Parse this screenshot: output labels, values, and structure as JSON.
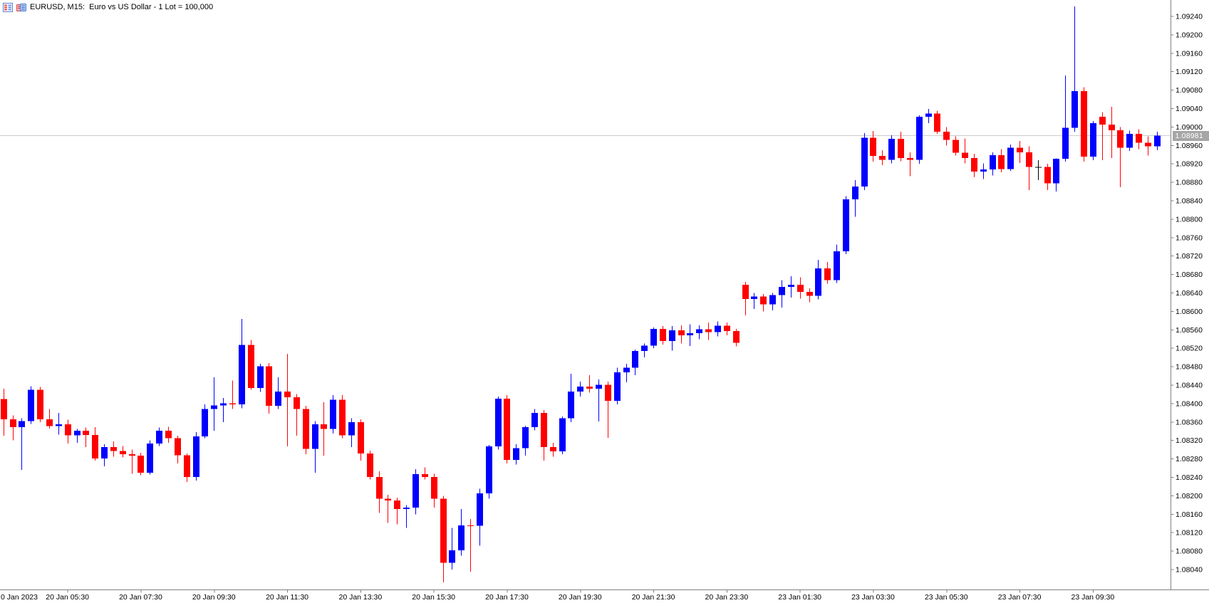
{
  "header": {
    "title": "EURUSD, M15:  Euro vs US Dollar - 1 Lot = 100,000",
    "icons": [
      "quotes-list-icon",
      "market-depth-icon"
    ]
  },
  "chart_data": {
    "type": "candlestick",
    "symbol": "EURUSD",
    "timeframe": "M15",
    "title": "EURUSD, M15:  Euro vs US Dollar - 1 Lot = 100,000",
    "price_scale": 100000,
    "current_price": 108981,
    "current_price_label": "1.08981",
    "colors": {
      "bull": "#0000ff",
      "bear": "#ff0000",
      "doji": "#000000",
      "price_line": "#cccccc",
      "badge_bg": "#a6a6a6",
      "badge_text": "#ffffff",
      "axis_line": "#808080",
      "axis_text": "#000000",
      "background": "#ffffff"
    },
    "y_axis": {
      "max": 109240,
      "min": 108040,
      "step": 40,
      "labels": [
        "1.09240",
        "1.09200",
        "1.09160",
        "1.09120",
        "1.09080",
        "1.09040",
        "1.09000",
        "1.08960",
        "1.08920",
        "1.08880",
        "1.08840",
        "1.08800",
        "1.08760",
        "1.08720",
        "1.08680",
        "1.08640",
        "1.08600",
        "1.08560",
        "1.08520",
        "1.08480",
        "1.08440",
        "1.08400",
        "1.08360",
        "1.08320",
        "1.08280",
        "1.08240",
        "1.08200",
        "1.08160",
        "1.08120",
        "1.08080",
        "1.08040"
      ]
    },
    "x_axis": {
      "labels": [
        {
          "index": -1,
          "text": "0 Jan 2023",
          "align": "left"
        },
        {
          "index": 7,
          "text": "20 Jan 05:30"
        },
        {
          "index": 15,
          "text": "20 Jan 07:30"
        },
        {
          "index": 23,
          "text": "20 Jan 09:30"
        },
        {
          "index": 31,
          "text": "20 Jan 11:30"
        },
        {
          "index": 39,
          "text": "20 Jan 13:30"
        },
        {
          "index": 47,
          "text": "20 Jan 15:30"
        },
        {
          "index": 55,
          "text": "20 Jan 17:30"
        },
        {
          "index": 63,
          "text": "20 Jan 19:30"
        },
        {
          "index": 71,
          "text": "20 Jan 21:30"
        },
        {
          "index": 79,
          "text": "20 Jan 23:30"
        },
        {
          "index": 87,
          "text": "23 Jan 01:30"
        },
        {
          "index": 95,
          "text": "23 Jan 03:30"
        },
        {
          "index": 103,
          "text": "23 Jan 05:30"
        },
        {
          "index": 111,
          "text": "23 Jan 07:30"
        },
        {
          "index": 119,
          "text": "23 Jan 09:30"
        }
      ]
    },
    "candles": [
      [
        108410,
        108432,
        108330,
        108366
      ],
      [
        108366,
        108374,
        108320,
        108349
      ],
      [
        108349,
        108368,
        108256,
        108362
      ],
      [
        108362,
        108438,
        108356,
        108430
      ],
      [
        108430,
        108436,
        108360,
        108366
      ],
      [
        108366,
        108388,
        108346,
        108351
      ],
      [
        108351,
        108380,
        108333,
        108355
      ],
      [
        108355,
        108365,
        108313,
        108331
      ],
      [
        108331,
        108345,
        108315,
        108341
      ],
      [
        108341,
        108348,
        108306,
        108332
      ],
      [
        108332,
        108349,
        108276,
        108281
      ],
      [
        108281,
        108312,
        108264,
        108306
      ],
      [
        108306,
        108318,
        108285,
        108297
      ],
      [
        108297,
        108308,
        108283,
        108290
      ],
      [
        108290,
        108300,
        108248,
        108287
      ],
      [
        108287,
        108293,
        108245,
        108250
      ],
      [
        108250,
        108320,
        108246,
        108313
      ],
      [
        108313,
        108348,
        108308,
        108341
      ],
      [
        108341,
        108350,
        108315,
        108325
      ],
      [
        108325,
        108330,
        108270,
        108288
      ],
      [
        108288,
        108292,
        108230,
        108241
      ],
      [
        108241,
        108338,
        108233,
        108329
      ],
      [
        108329,
        108398,
        108325,
        108388
      ],
      [
        108388,
        108457,
        108341,
        108396
      ],
      [
        108396,
        108412,
        108360,
        108401
      ],
      [
        108401,
        108450,
        108388,
        108398
      ],
      [
        108398,
        108584,
        108390,
        108527
      ],
      [
        108527,
        108538,
        108430,
        108434
      ],
      [
        108434,
        108486,
        108425,
        108481
      ],
      [
        108481,
        108488,
        108378,
        108395
      ],
      [
        108395,
        108457,
        108388,
        108426
      ],
      [
        108426,
        108508,
        108307,
        108414
      ],
      [
        108414,
        108421,
        108330,
        108388
      ],
      [
        108388,
        108395,
        108290,
        108302
      ],
      [
        108302,
        108362,
        108250,
        108355
      ],
      [
        108355,
        108403,
        108287,
        108345
      ],
      [
        108345,
        108418,
        108335,
        108408
      ],
      [
        108408,
        108418,
        108325,
        108331
      ],
      [
        108331,
        108368,
        108306,
        108360
      ],
      [
        108360,
        108366,
        108276,
        108292
      ],
      [
        108292,
        108298,
        108235,
        108241
      ],
      [
        108241,
        108253,
        108163,
        108194
      ],
      [
        108194,
        108202,
        108141,
        108190
      ],
      [
        108190,
        108196,
        108138,
        108171
      ],
      [
        108171,
        108180,
        108130,
        108174
      ],
      [
        108174,
        108258,
        108160,
        108247
      ],
      [
        108247,
        108262,
        108235,
        108241
      ],
      [
        108241,
        108248,
        108174,
        108194
      ],
      [
        108194,
        108200,
        108012,
        108055
      ],
      [
        108055,
        108130,
        108040,
        108082
      ],
      [
        108082,
        108171,
        108070,
        108136
      ],
      [
        108136,
        108150,
        108035,
        108135
      ],
      [
        108135,
        108215,
        108092,
        108205
      ],
      [
        108205,
        108310,
        108194,
        108307
      ],
      [
        108307,
        108415,
        108300,
        108411
      ],
      [
        108411,
        108418,
        108270,
        108278
      ],
      [
        108278,
        108312,
        108268,
        108303
      ],
      [
        108303,
        108352,
        108287,
        108349
      ],
      [
        108349,
        108388,
        108342,
        108380
      ],
      [
        108380,
        108386,
        108276,
        108306
      ],
      [
        108306,
        108315,
        108285,
        108296
      ],
      [
        108296,
        108372,
        108290,
        108368
      ],
      [
        108368,
        108465,
        108360,
        108426
      ],
      [
        108426,
        108448,
        108415,
        108437
      ],
      [
        108437,
        108462,
        108424,
        108432
      ],
      [
        108432,
        108452,
        108361,
        108441
      ],
      [
        108441,
        108448,
        108326,
        108406
      ],
      [
        108406,
        108478,
        108398,
        108468
      ],
      [
        108468,
        108486,
        108446,
        108478
      ],
      [
        108478,
        108517,
        108462,
        108514
      ],
      [
        108514,
        108530,
        108500,
        108526
      ],
      [
        108526,
        108565,
        108520,
        108562
      ],
      [
        108562,
        108568,
        108528,
        108536
      ],
      [
        108536,
        108568,
        108515,
        108559
      ],
      [
        108559,
        108570,
        108530,
        108548
      ],
      [
        108548,
        108572,
        108525,
        108553
      ],
      [
        108553,
        108570,
        108540,
        108561
      ],
      [
        108561,
        108576,
        108538,
        108555
      ],
      [
        108555,
        108578,
        108546,
        108569
      ],
      [
        108569,
        108576,
        108548,
        108557
      ],
      [
        108557,
        108562,
        108524,
        108532
      ],
      [
        108658,
        108664,
        108591,
        108627
      ],
      [
        108627,
        108640,
        108605,
        108632
      ],
      [
        108632,
        108638,
        108600,
        108615
      ],
      [
        108615,
        108640,
        108602,
        108635
      ],
      [
        108635,
        108668,
        108608,
        108653
      ],
      [
        108653,
        108676,
        108630,
        108658
      ],
      [
        108658,
        108674,
        108628,
        108642
      ],
      [
        108642,
        108650,
        108620,
        108634
      ],
      [
        108634,
        108712,
        108626,
        108693
      ],
      [
        108693,
        108707,
        108660,
        108668
      ],
      [
        108668,
        108745,
        108662,
        108730
      ],
      [
        108730,
        108850,
        108724,
        108843
      ],
      [
        108843,
        108885,
        108805,
        108871
      ],
      [
        108871,
        108987,
        108863,
        108977
      ],
      [
        108977,
        108991,
        108925,
        108937
      ],
      [
        108937,
        108950,
        108917,
        108929
      ],
      [
        108929,
        108982,
        108921,
        108974
      ],
      [
        108974,
        108990,
        108926,
        108933
      ],
      [
        108933,
        108945,
        108893,
        108929
      ],
      [
        108929,
        109025,
        108920,
        109022
      ],
      [
        109022,
        109039,
        109008,
        109029
      ],
      [
        109029,
        109035,
        108985,
        108990
      ],
      [
        108990,
        109000,
        108960,
        108972
      ],
      [
        108972,
        108980,
        108938,
        108944
      ],
      [
        108944,
        108975,
        108921,
        108933
      ],
      [
        108933,
        108942,
        108891,
        108903
      ],
      [
        108903,
        108921,
        108887,
        108908
      ],
      [
        108908,
        108945,
        108895,
        108939
      ],
      [
        108939,
        108952,
        108902,
        108909
      ],
      [
        108909,
        108962,
        108905,
        108955
      ],
      [
        108955,
        108970,
        108922,
        108945
      ],
      [
        108945,
        108958,
        108863,
        108913
      ],
      [
        108913,
        108928,
        108885,
        108913
      ],
      [
        108913,
        108920,
        108863,
        108878
      ],
      [
        108878,
        108932,
        108860,
        108931
      ],
      [
        108931,
        109112,
        108925,
        108998
      ],
      [
        108998,
        109262,
        108990,
        109078
      ],
      [
        109078,
        109086,
        108925,
        108936
      ],
      [
        108936,
        109013,
        108928,
        109008
      ],
      [
        109022,
        109032,
        108928,
        109005
      ],
      [
        109005,
        109044,
        108933,
        108993
      ],
      [
        108993,
        109000,
        108869,
        108955
      ],
      [
        108955,
        108992,
        108948,
        108985
      ],
      [
        108985,
        108995,
        108952,
        108966
      ],
      [
        108966,
        108980,
        108938,
        108958
      ],
      [
        108958,
        108990,
        108950,
        108981
      ]
    ]
  }
}
